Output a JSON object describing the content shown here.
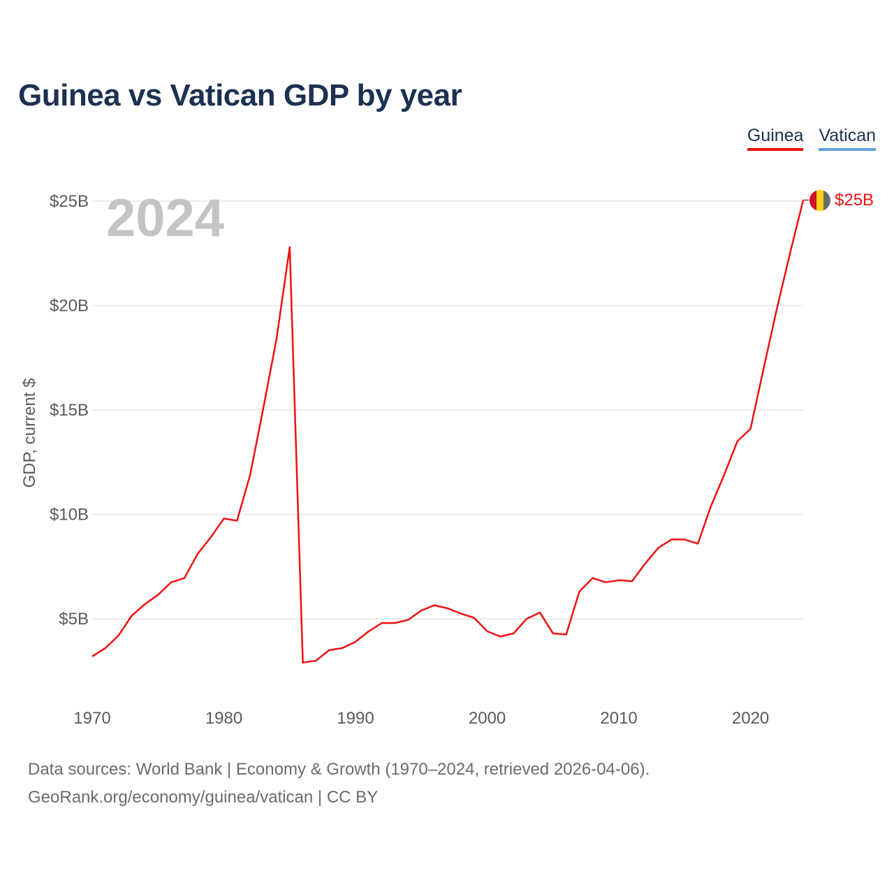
{
  "title": "Guinea vs Vatican GDP by year",
  "legend": [
    {
      "label": "Guinea",
      "color": "#ee1111"
    },
    {
      "label": "Vatican",
      "color": "#5a9fe0"
    }
  ],
  "year_watermark": "2024",
  "end_label": "$25B",
  "flag_colors": [
    "#ce1126",
    "#fcd116",
    "#6b6b6b"
  ],
  "source": {
    "line1": "Data sources: World Bank | Economy & Growth (1970–2024, retrieved 2026-04-06).",
    "line2": "GeoRank.org/economy/guinea/vatican | CC BY"
  },
  "chart_data": {
    "type": "line",
    "title": "Guinea vs Vatican GDP by year",
    "xlabel": "",
    "ylabel": "GDP, current $",
    "xlim": [
      1970,
      2024
    ],
    "ylim": [
      2,
      26
    ],
    "y_unit": "billions USD",
    "y_ticks": [
      5,
      10,
      15,
      20,
      25
    ],
    "y_tick_labels": [
      "$5B",
      "$10B",
      "$15B",
      "$20B",
      "$25B"
    ],
    "x_ticks": [
      1970,
      1980,
      1990,
      2000,
      2010,
      2020
    ],
    "x_tick_labels": [
      "1970",
      "1980",
      "1990",
      "2000",
      "2010",
      "2020"
    ],
    "grid": true,
    "legend_position": "top-right",
    "series": [
      {
        "name": "Guinea",
        "color": "#ee1111",
        "x": [
          1970,
          1971,
          1972,
          1973,
          1974,
          1975,
          1976,
          1977,
          1978,
          1979,
          1980,
          1981,
          1982,
          1983,
          1984,
          1985,
          1986,
          1987,
          1988,
          1989,
          1990,
          1991,
          1992,
          1993,
          1994,
          1995,
          1996,
          1997,
          1998,
          1999,
          2000,
          2001,
          2002,
          2003,
          2004,
          2005,
          2006,
          2007,
          2008,
          2009,
          2010,
          2011,
          2012,
          2013,
          2014,
          2015,
          2016,
          2017,
          2018,
          2019,
          2020,
          2021,
          2022,
          2023,
          2024
        ],
        "values": [
          3.2,
          3.6,
          4.2,
          5.15,
          5.7,
          6.15,
          6.75,
          6.95,
          8.1,
          8.9,
          9.8,
          9.7,
          11.9,
          15.1,
          18.4,
          22.8,
          2.9,
          3.0,
          3.5,
          3.6,
          3.9,
          4.4,
          4.8,
          4.8,
          4.95,
          5.4,
          5.65,
          5.5,
          5.25,
          5.05,
          4.4,
          4.15,
          4.3,
          5.0,
          5.3,
          4.3,
          4.25,
          6.3,
          6.95,
          6.75,
          6.85,
          6.8,
          7.65,
          8.4,
          8.8,
          8.8,
          8.6,
          10.4,
          11.9,
          13.5,
          14.1,
          17.0,
          19.85,
          22.5,
          25.05
        ]
      },
      {
        "name": "Vatican",
        "color": "#5a9fe0",
        "x": [],
        "values": []
      }
    ]
  }
}
